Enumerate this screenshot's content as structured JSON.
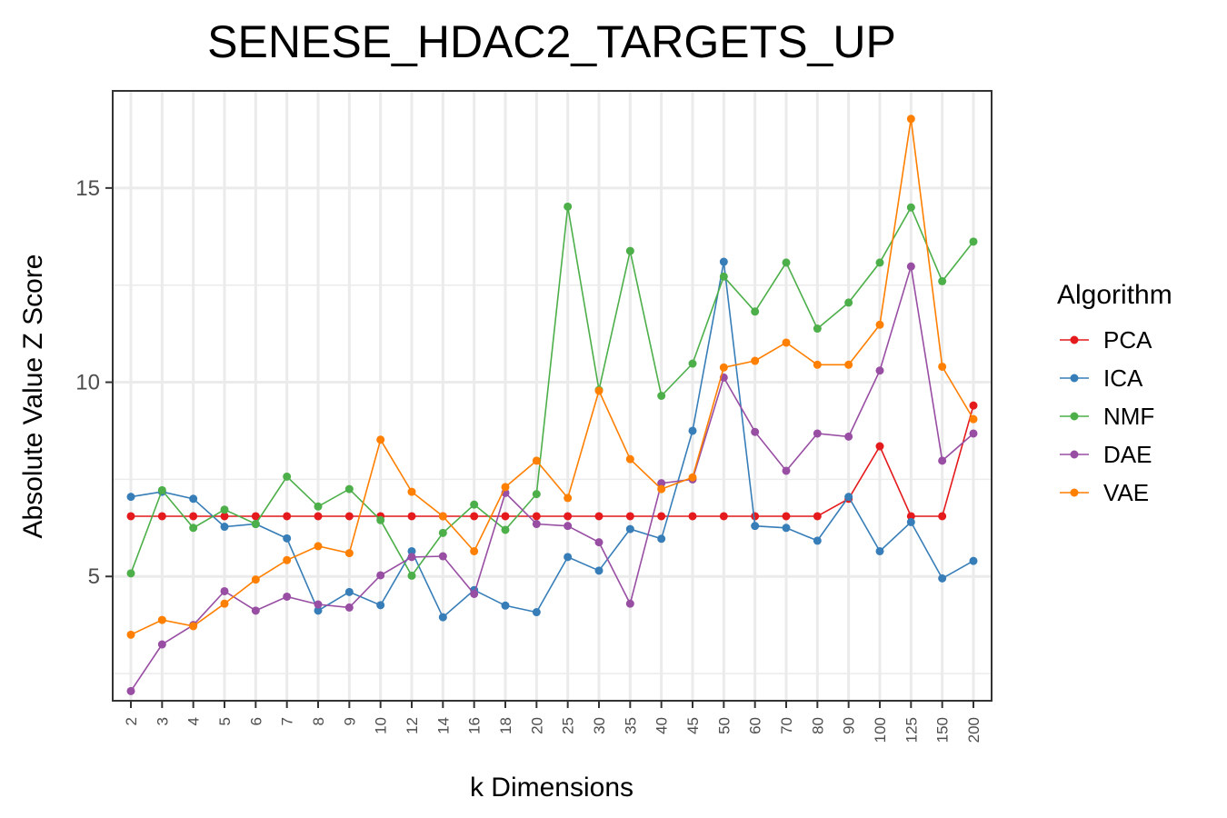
{
  "chart_data": {
    "type": "line",
    "title": "SENESE_HDAC2_TARGETS_UP",
    "xlabel": "k Dimensions",
    "ylabel": "Absolute Value Z Score",
    "categories": [
      "2",
      "3",
      "4",
      "5",
      "6",
      "7",
      "8",
      "9",
      "10",
      "12",
      "14",
      "16",
      "18",
      "20",
      "25",
      "30",
      "35",
      "40",
      "45",
      "50",
      "60",
      "70",
      "80",
      "90",
      "100",
      "125",
      "150",
      "200"
    ],
    "yticks": [
      5,
      10,
      15
    ],
    "ylim": [
      1.8,
      17.5
    ],
    "grid": true,
    "legend": {
      "title": "Algorithm",
      "position": "right"
    },
    "series": [
      {
        "name": "PCA",
        "color": "#e41a1c",
        "values": [
          6.55,
          6.55,
          6.55,
          6.55,
          6.55,
          6.55,
          6.55,
          6.55,
          6.55,
          6.55,
          6.55,
          6.55,
          6.55,
          6.55,
          6.55,
          6.55,
          6.55,
          6.55,
          6.55,
          6.55,
          6.55,
          6.55,
          6.55,
          7.0,
          8.35,
          6.55,
          6.55,
          9.4
        ]
      },
      {
        "name": "ICA",
        "color": "#377eb8",
        "values": [
          7.05,
          7.18,
          7.0,
          6.28,
          6.35,
          5.98,
          4.12,
          4.6,
          4.26,
          5.65,
          3.95,
          4.65,
          4.25,
          4.08,
          5.5,
          5.15,
          6.22,
          5.97,
          8.75,
          13.1,
          6.3,
          6.25,
          5.92,
          7.05,
          5.65,
          6.4,
          4.95,
          5.4
        ]
      },
      {
        "name": "NMF",
        "color": "#4daf4a",
        "values": [
          5.08,
          7.22,
          6.25,
          6.72,
          6.35,
          7.57,
          6.8,
          7.25,
          6.45,
          5.02,
          6.12,
          6.85,
          6.2,
          7.12,
          14.52,
          9.8,
          13.38,
          9.65,
          10.48,
          12.72,
          11.82,
          13.08,
          11.38,
          12.05,
          13.08,
          14.5,
          12.6,
          13.62
        ]
      },
      {
        "name": "DAE",
        "color": "#984ea3",
        "values": [
          2.05,
          3.25,
          3.75,
          4.62,
          4.12,
          4.48,
          4.28,
          4.2,
          5.03,
          5.5,
          5.52,
          4.55,
          7.15,
          6.35,
          6.3,
          5.88,
          4.3,
          7.4,
          7.5,
          10.12,
          8.72,
          7.72,
          8.68,
          8.6,
          10.3,
          12.98,
          7.98,
          8.68
        ]
      },
      {
        "name": "VAE",
        "color": "#ff7f00",
        "values": [
          3.5,
          3.88,
          3.72,
          4.3,
          4.92,
          5.42,
          5.78,
          5.6,
          8.52,
          7.18,
          6.55,
          5.65,
          7.3,
          7.98,
          7.02,
          9.78,
          8.02,
          7.25,
          7.55,
          10.38,
          10.55,
          11.02,
          10.45,
          10.45,
          11.48,
          16.78,
          10.4,
          9.05
        ]
      }
    ]
  }
}
